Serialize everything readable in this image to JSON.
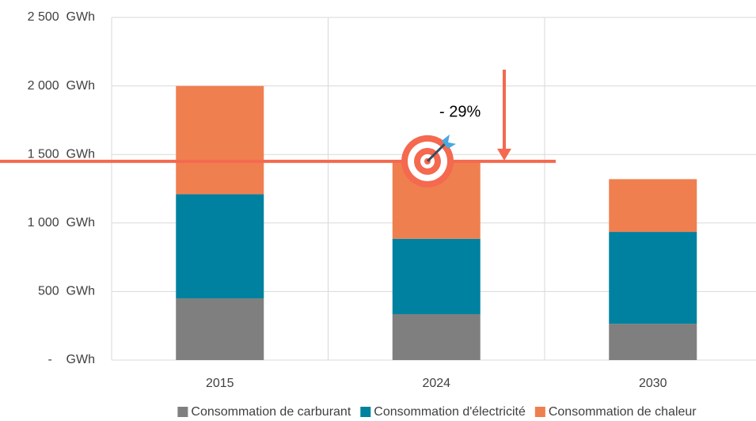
{
  "chart_data": {
    "type": "stacked_bar",
    "categories": [
      "2015",
      "2024",
      "2030"
    ],
    "series": [
      {
        "name": "Consommation de carburant",
        "color": "#7f7f7f",
        "values": [
          450,
          335,
          265
        ]
      },
      {
        "name": "Consommation d'électricité",
        "color": "#00819f",
        "values": [
          760,
          550,
          670
        ]
      },
      {
        "name": "Consommation de chaleur",
        "color": "#f07f50",
        "values": [
          790,
          565,
          385
        ]
      }
    ],
    "ylim": [
      0,
      2500
    ],
    "yticks": [
      {
        "value": 0,
        "label": "-    GWh"
      },
      {
        "value": 500,
        "label": "500  GWh"
      },
      {
        "value": 1000,
        "label": "1 000  GWh"
      },
      {
        "value": 1500,
        "label": "1 500  GWh"
      },
      {
        "value": 2000,
        "label": "2 000  GWh"
      },
      {
        "value": 2500,
        "label": "2 500  GWh"
      }
    ],
    "grid": true,
    "legend": "bottom",
    "reference_line": {
      "value": 1450,
      "color": "#f4694f"
    },
    "annotation": "- 29%"
  }
}
